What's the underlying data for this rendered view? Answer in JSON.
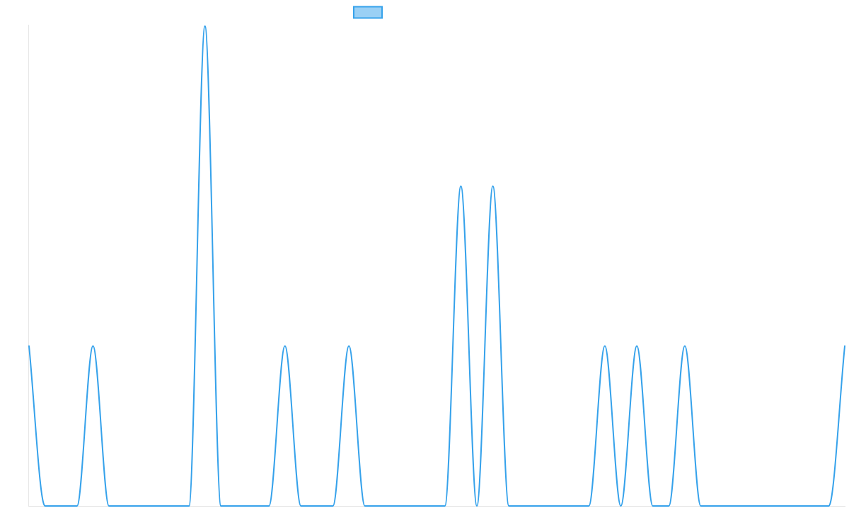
{
  "chart_data": {
    "type": "line",
    "title": "",
    "xlabel": "",
    "ylabel": "",
    "grid": false,
    "legend_position": "top-center",
    "x": [
      0,
      1,
      2,
      3,
      4,
      5,
      6,
      7,
      8,
      9,
      10,
      11,
      12,
      13,
      14,
      15,
      16,
      17,
      18,
      19,
      20,
      21,
      22,
      23,
      24,
      25,
      26,
      27,
      28,
      29,
      30,
      31,
      32,
      33,
      34,
      35,
      36,
      37,
      38,
      39,
      40,
      41,
      42,
      43,
      44,
      45,
      46,
      47,
      48,
      49,
      50,
      51
    ],
    "xlim": [
      0,
      51
    ],
    "ylim": [
      0,
      3
    ],
    "series": [
      {
        "color": "#36a2eb",
        "fill_color": "#9ad0f5",
        "values": [
          1,
          0,
          0,
          0,
          1,
          0,
          0,
          0,
          0,
          0,
          0,
          3,
          0,
          0,
          0,
          0,
          1,
          0,
          0,
          0,
          1,
          0,
          0,
          0,
          0,
          0,
          0,
          2,
          0,
          2,
          0,
          0,
          0,
          0,
          0,
          0,
          1,
          0,
          1,
          0,
          0,
          1,
          0,
          0,
          0,
          0,
          0,
          0,
          0,
          0,
          0,
          1
        ]
      }
    ]
  }
}
